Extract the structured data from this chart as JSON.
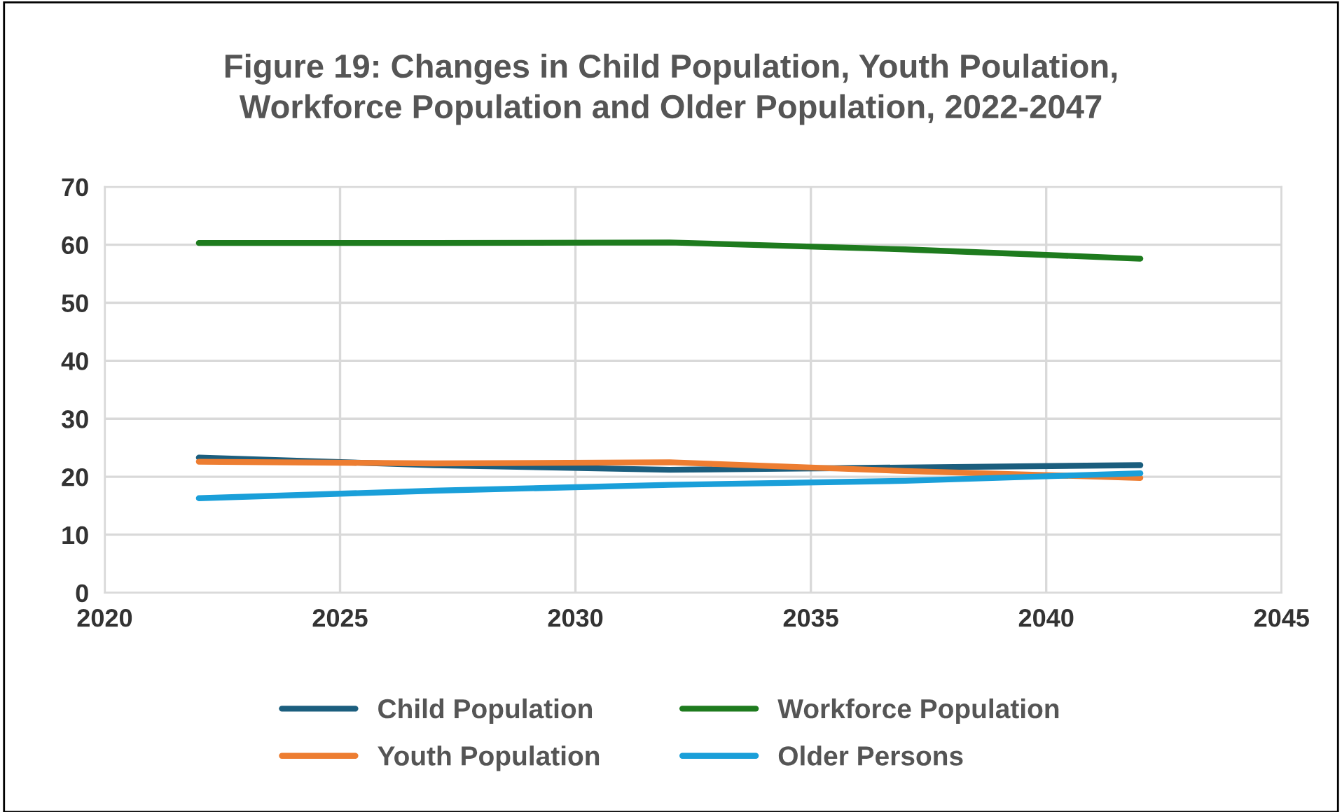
{
  "chart_data": {
    "type": "line",
    "title": "Figure 19: Changes in Child Population, Youth Poulation,\nWorkforce Population and Older Population, 2022-2047",
    "x": [
      2022,
      2027,
      2032,
      2037,
      2042
    ],
    "series": [
      {
        "name": "Child Population",
        "color": "#1b5e7e",
        "values": [
          23.3,
          22.0,
          21.2,
          21.6,
          22.0
        ]
      },
      {
        "name": "Youth Population",
        "color": "#ed7d31",
        "values": [
          22.6,
          22.3,
          22.5,
          21.0,
          19.8
        ]
      },
      {
        "name": "Workforce Population",
        "color": "#1e7b1e",
        "values": [
          60.3,
          60.3,
          60.4,
          59.2,
          57.6
        ]
      },
      {
        "name": "Older Persons",
        "color": "#1a9fd9",
        "values": [
          16.3,
          17.6,
          18.6,
          19.3,
          20.6
        ]
      }
    ],
    "xlim": [
      2020,
      2045
    ],
    "xticks": [
      2020,
      2025,
      2030,
      2035,
      2040,
      2045
    ],
    "ylim": [
      0,
      70
    ],
    "yticks": [
      0,
      10,
      20,
      30,
      40,
      50,
      60,
      70
    ],
    "grid": true,
    "legend": "bottom",
    "marker": "none",
    "line_style": "solid"
  }
}
